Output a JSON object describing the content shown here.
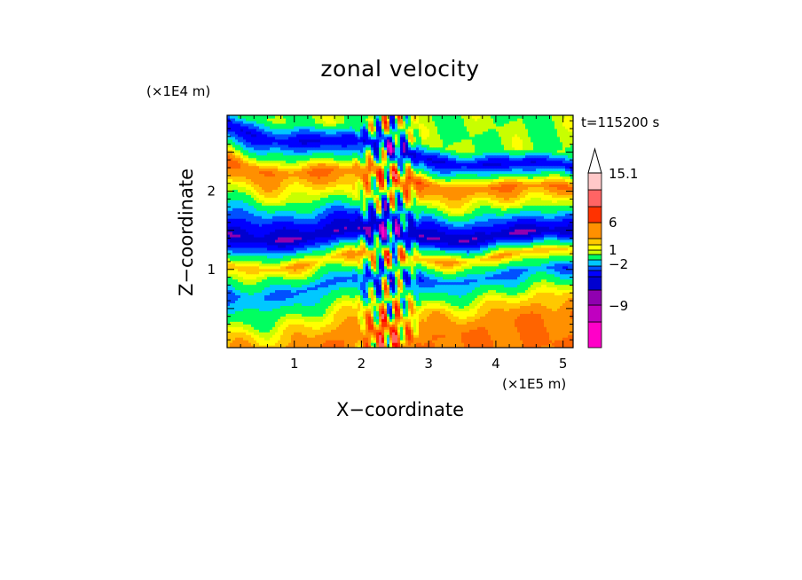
{
  "chart_data": {
    "type": "heatmap",
    "title": "zonal velocity",
    "time_label": "t=115200 s",
    "xlabel": "X−coordinate",
    "ylabel": "Z−coordinate",
    "x_unit": "(×1E5 m)",
    "y_unit": "(×1E4 m)",
    "xlim": [
      0,
      5.15
    ],
    "ylim": [
      0,
      2.97
    ],
    "x_ticks": [
      "1",
      "2",
      "3",
      "4",
      "5"
    ],
    "y_ticks": [
      "1",
      "2"
    ],
    "grid": false,
    "colorbar": {
      "ticks": [
        "15.1",
        "6",
        "1",
        "−2",
        "−9"
      ],
      "colors": [
        "#ff00c8",
        "#c000c0",
        "#9000b0",
        "#0000d0",
        "#0000ff",
        "#0050ff",
        "#00c8ff",
        "#00ff60",
        "#c8ff00",
        "#ffff00",
        "#ffc800",
        "#ff9000",
        "#ff6400",
        "#ff3200",
        "#ff0000",
        "#ff6464",
        "#ffa0a0",
        "#ffc8c8"
      ],
      "extend": "max"
    },
    "bands": [
      {
        "z": 2.72,
        "u": 0.0
      },
      {
        "z": 2.52,
        "u": -7.0
      },
      {
        "z": 2.17,
        "u": 4.5
      },
      {
        "z": 1.86,
        "u": 0.3
      },
      {
        "z": 1.45,
        "u": -9.0
      },
      {
        "z": 1.15,
        "u": 3.0
      },
      {
        "z": 0.86,
        "u": -4.0
      },
      {
        "z": 0.46,
        "u": 1.8
      },
      {
        "z": 0.12,
        "u": 4.5
      }
    ]
  }
}
